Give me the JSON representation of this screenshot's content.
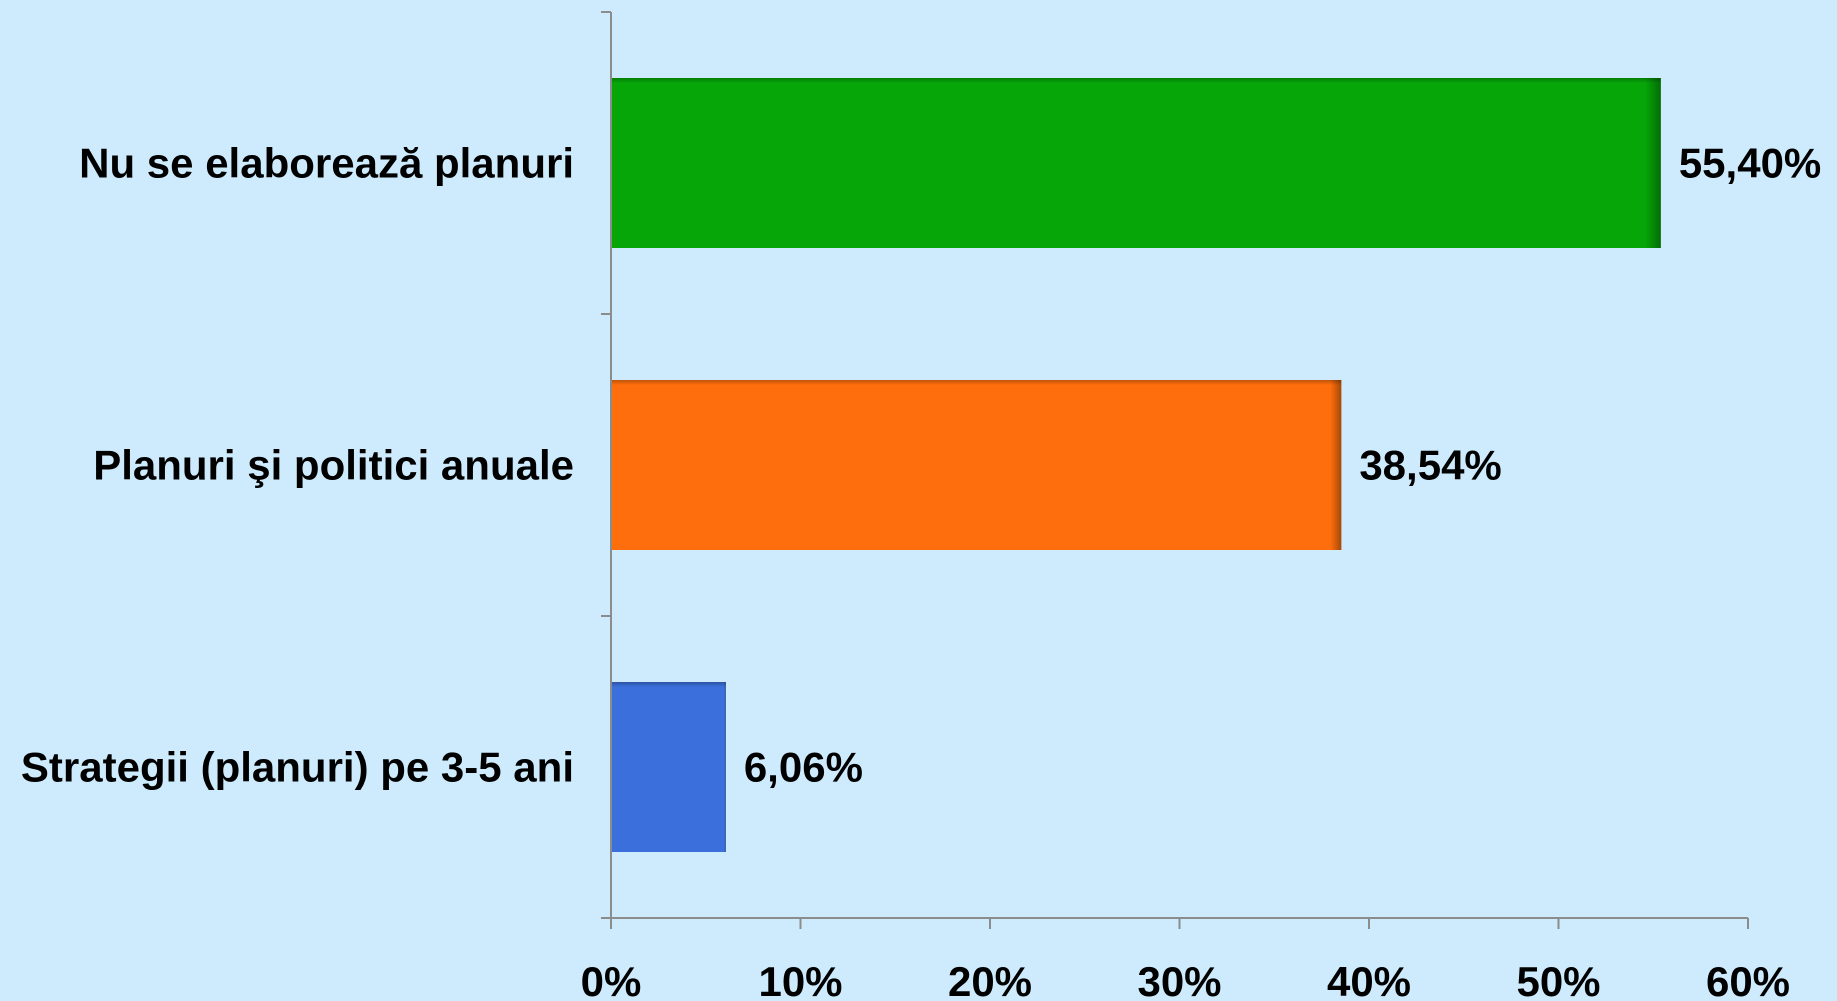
{
  "chart_data": {
    "type": "bar",
    "orientation": "horizontal",
    "categories": [
      "Nu se elaborează planuri",
      "Planuri şi politici anuale",
      "Strategii (planuri) pe 3-5 ani"
    ],
    "values": [
      55.4,
      38.54,
      6.06
    ],
    "value_labels": [
      "55,40%",
      "38,54%",
      "6,06%"
    ],
    "bar_colors": [
      "#06a608",
      "#ff6e0c",
      "#3b70dc"
    ],
    "xlim": [
      0,
      60
    ],
    "x_ticks": [
      0,
      10,
      20,
      30,
      40,
      50,
      60
    ],
    "x_tick_labels": [
      "0%",
      "10%",
      "20%",
      "30%",
      "40%",
      "50%",
      "60%"
    ],
    "title": "",
    "xlabel": "",
    "ylabel": "",
    "grid": false,
    "legend": "none",
    "background_color": "#cdebfd"
  }
}
